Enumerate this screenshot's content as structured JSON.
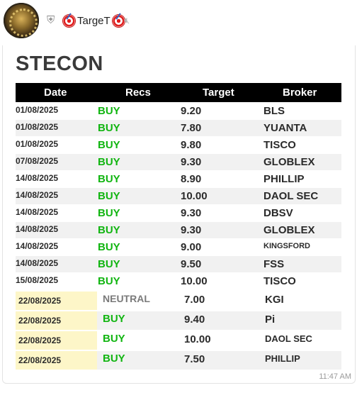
{
  "chat": {
    "channel_name": "TargeT",
    "time": "11:47 AM"
  },
  "card": {
    "title": "STECON",
    "headers": {
      "date": "Date",
      "recs": "Recs",
      "target": "Target",
      "broker": "Broker"
    },
    "colors": {
      "buy": "#11b511",
      "neutral": "#7a7a7a",
      "highlight": "#fdf6c8"
    },
    "rows": [
      {
        "date": "01/08/2025",
        "rec": "BUY",
        "target": "9.20",
        "broker": "BLS"
      },
      {
        "date": "01/08/2025",
        "rec": "BUY",
        "target": "7.80",
        "broker": "YUANTA"
      },
      {
        "date": "01/08/2025",
        "rec": "BUY",
        "target": "9.80",
        "broker": "TISCO"
      },
      {
        "date": "07/08/2025",
        "rec": "BUY",
        "target": "9.30",
        "broker": "GLOBLEX"
      },
      {
        "date": "14/08/2025",
        "rec": "BUY",
        "target": "8.90",
        "broker": "PHILLIP"
      },
      {
        "date": "14/08/2025",
        "rec": "BUY",
        "target": "10.00",
        "broker": "DAOL SEC"
      },
      {
        "date": "14/08/2025",
        "rec": "BUY",
        "target": "9.30",
        "broker": "DBSV"
      },
      {
        "date": "14/08/2025",
        "rec": "BUY",
        "target": "9.30",
        "broker": "GLOBLEX"
      },
      {
        "date": "14/08/2025",
        "rec": "BUY",
        "target": "9.00",
        "broker": "KINGSFORD"
      },
      {
        "date": "14/08/2025",
        "rec": "BUY",
        "target": "9.50",
        "broker": "FSS"
      },
      {
        "date": "15/08/2025",
        "rec": "BUY",
        "target": "10.00",
        "broker": "TISCO"
      }
    ],
    "new_rows": [
      {
        "date": "22/08/2025",
        "rec": "NEUTRAL",
        "target": "7.00",
        "broker": "KGI"
      },
      {
        "date": "22/08/2025",
        "rec": "BUY",
        "target": "9.40",
        "broker": "Pi"
      },
      {
        "date": "22/08/2025",
        "rec": "BUY",
        "target": "10.00",
        "broker": "DAOL SEC"
      },
      {
        "date": "22/08/2025",
        "rec": "BUY",
        "target": "7.50",
        "broker": "PHILLIP"
      }
    ]
  },
  "icons": {
    "verified": "shield-icon",
    "mute": "speaker-muted-icon",
    "emoji": "direct-hit-emoji"
  }
}
